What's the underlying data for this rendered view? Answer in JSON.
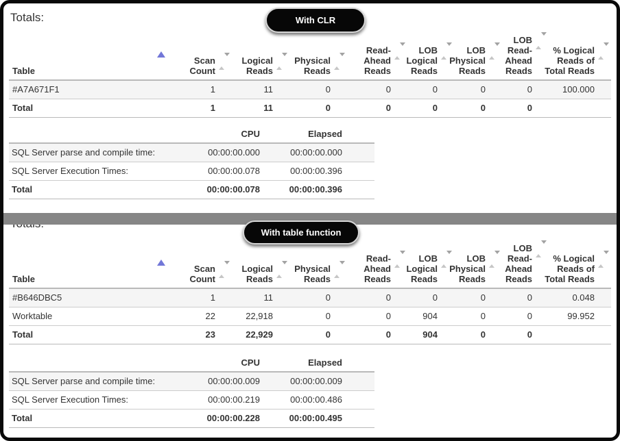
{
  "frame": {
    "background": "#ffffff",
    "border_color": "#0a0a0a",
    "divider_color": "#868686"
  },
  "sort": {
    "active_color": "#7277d8",
    "inactive_color": "#b5b5b5",
    "active_column": "Table",
    "active_direction": "ascending"
  },
  "sections": [
    {
      "heading": "Totals:",
      "badge_label": "With CLR",
      "reads_table": {
        "columns": [
          "Table",
          "Scan\nCount",
          "Logical\nReads",
          "Physical\nReads",
          "Read-\nAhead\nReads",
          "LOB\nLogical\nReads",
          "LOB\nPhysical\nReads",
          "LOB\nRead-\nAhead\nReads",
          "% Logical\nReads of\nTotal Reads"
        ],
        "rows": [
          [
            "#A7A671F1",
            "1",
            "11",
            "0",
            "0",
            "0",
            "0",
            "0",
            "100.000"
          ]
        ],
        "total_row": [
          "Total",
          "1",
          "11",
          "0",
          "0",
          "0",
          "0",
          "0",
          ""
        ]
      },
      "times_table": {
        "columns": [
          "",
          "CPU",
          "Elapsed"
        ],
        "rows": [
          [
            "SQL Server parse and compile time:",
            "00:00:00.000",
            "00:00:00.000"
          ],
          [
            "SQL Server Execution Times:",
            "00:00:00.078",
            "00:00:00.396"
          ]
        ],
        "total_row": [
          "Total",
          "00:00:00.078",
          "00:00:00.396"
        ]
      }
    },
    {
      "heading": "Totals:",
      "badge_label": "With table function",
      "reads_table": {
        "columns": [
          "Table",
          "Scan\nCount",
          "Logical\nReads",
          "Physical\nReads",
          "Read-\nAhead\nReads",
          "LOB\nLogical\nReads",
          "LOB\nPhysical\nReads",
          "LOB\nRead-\nAhead\nReads",
          "% Logical\nReads of\nTotal Reads"
        ],
        "rows": [
          [
            "#B646DBC5",
            "1",
            "11",
            "0",
            "0",
            "0",
            "0",
            "0",
            "0.048"
          ],
          [
            "Worktable",
            "22",
            "22,918",
            "0",
            "0",
            "904",
            "0",
            "0",
            "99.952"
          ]
        ],
        "total_row": [
          "Total",
          "23",
          "22,929",
          "0",
          "0",
          "904",
          "0",
          "0",
          ""
        ]
      },
      "times_table": {
        "columns": [
          "",
          "CPU",
          "Elapsed"
        ],
        "rows": [
          [
            "SQL Server parse and compile time:",
            "00:00:00.009",
            "00:00:00.009"
          ],
          [
            "SQL Server Execution Times:",
            "00:00:00.219",
            "00:00:00.486"
          ]
        ],
        "total_row": [
          "Total",
          "00:00:00.228",
          "00:00:00.495"
        ]
      }
    }
  ]
}
